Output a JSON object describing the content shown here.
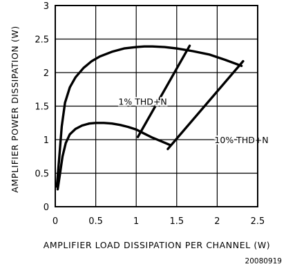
{
  "chart_data": {
    "type": "line",
    "title": "",
    "xlabel": "AMPLIFIER LOAD DISSIPATION PER CHANNEL (W)",
    "ylabel": "AMPLIFIER POWER DISSIPATION (W)",
    "xlim": [
      0,
      2.5
    ],
    "ylim": [
      0,
      3
    ],
    "x_ticks": [
      "0",
      "0.5",
      "1",
      "1.5",
      "2",
      "2.5"
    ],
    "y_ticks": [
      "0",
      "0.5",
      "1",
      "1.5",
      "2",
      "2.5",
      "3"
    ],
    "grid": true,
    "series": [
      {
        "x": [
          0.02,
          0.05,
          0.08,
          0.12,
          0.18,
          0.25,
          0.35,
          0.45,
          0.55,
          0.7,
          0.85,
          1.0,
          1.1,
          1.2,
          1.35,
          1.5,
          1.7,
          1.9,
          2.1,
          2.3
        ],
        "y": [
          0.3,
          0.75,
          1.2,
          1.55,
          1.78,
          1.93,
          2.07,
          2.17,
          2.24,
          2.31,
          2.36,
          2.38,
          2.39,
          2.39,
          2.38,
          2.36,
          2.32,
          2.27,
          2.19,
          2.1
        ]
      },
      {
        "x": [
          0.03,
          0.06,
          0.09,
          0.13,
          0.18,
          0.25,
          0.33,
          0.42,
          0.5,
          0.6,
          0.7,
          0.8,
          0.9,
          1.0,
          1.1,
          1.2,
          1.3,
          1.42
        ],
        "y": [
          0.26,
          0.5,
          0.75,
          0.95,
          1.08,
          1.16,
          1.21,
          1.24,
          1.25,
          1.25,
          1.24,
          1.22,
          1.19,
          1.15,
          1.09,
          1.03,
          0.98,
          0.92
        ]
      }
    ],
    "annotations": [
      {
        "text": "1% THD+N",
        "x": 1.08,
        "y": 1.52
      },
      {
        "text": "10% THD+N",
        "x": 2.3,
        "y": 0.95
      }
    ],
    "annotation_lines": [
      {
        "x1": 1.02,
        "y1": 1.04,
        "x2": 1.66,
        "y2": 2.4
      },
      {
        "x1": 1.39,
        "y1": 0.86,
        "x2": 2.32,
        "y2": 2.17
      }
    ],
    "doc_id": "20080919"
  }
}
